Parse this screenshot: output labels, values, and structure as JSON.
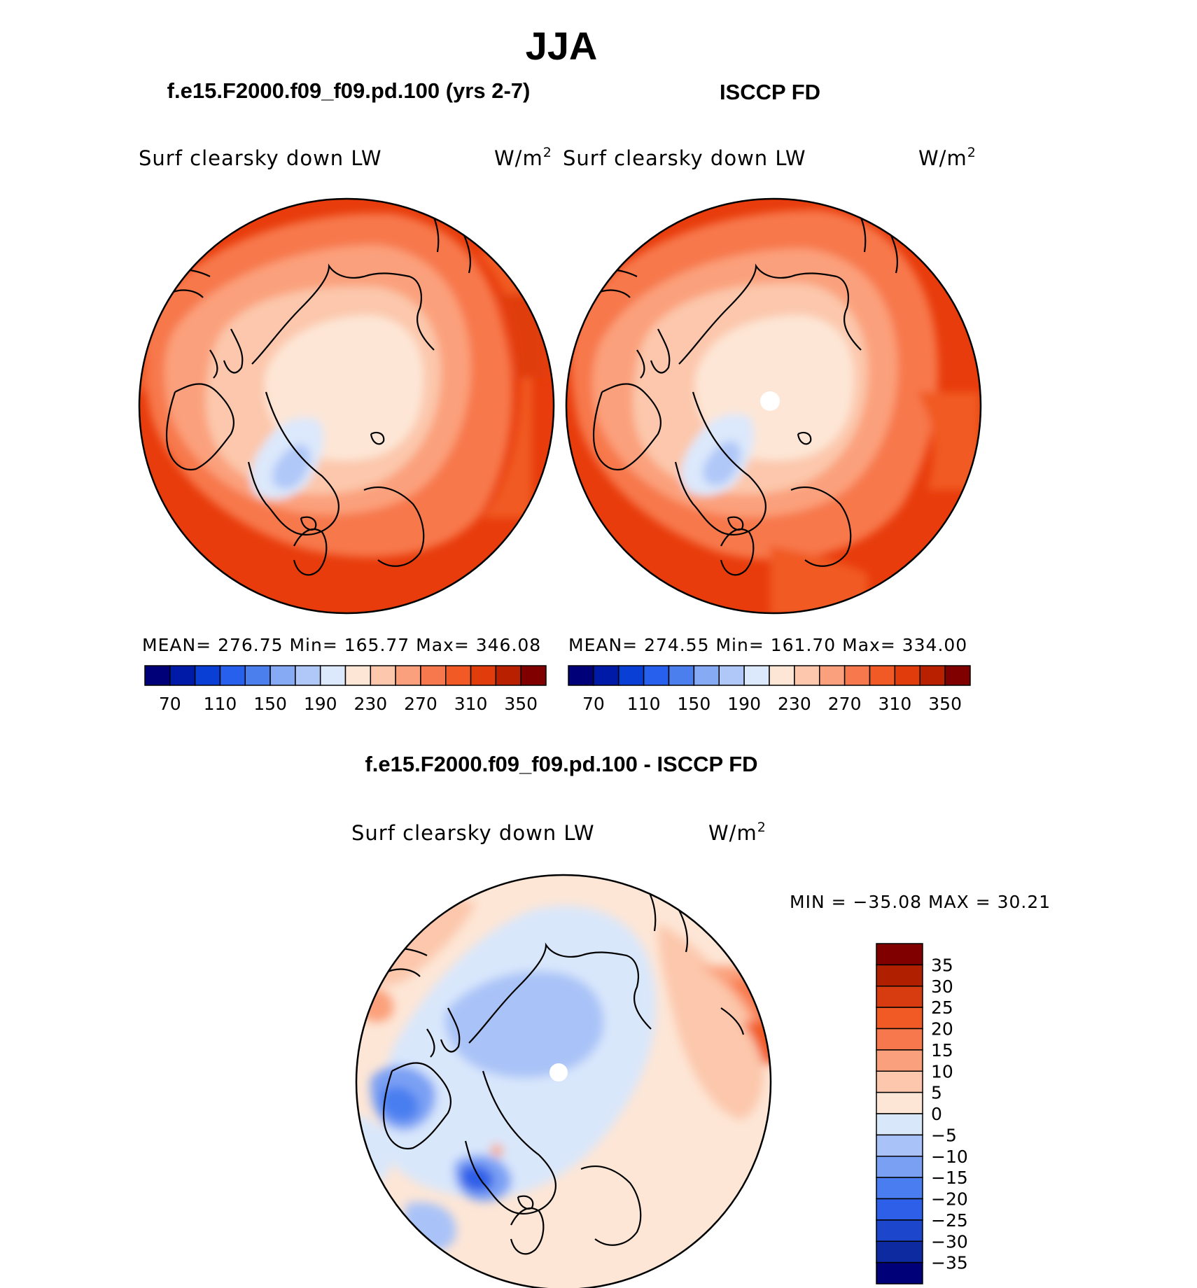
{
  "season": "JJA",
  "colors": {
    "div": [
      "#000078",
      "#001aa8",
      "#0a3fd6",
      "#2860ee",
      "#4b7fee",
      "#86aaf4",
      "#b0c8f8",
      "#dce8fb",
      "#fde6d6",
      "#fcc7ac",
      "#fba07c",
      "#f7784c",
      "#f15a24",
      "#e03c0c",
      "#b82000",
      "#800000"
    ],
    "diff": [
      "#000078",
      "#0e2aa0",
      "#1c46cc",
      "#2d5fe8",
      "#4a7ef0",
      "#7aa0f4",
      "#a9c3f8",
      "#d9e7fb",
      "#fde6d6",
      "#fcc7ac",
      "#fba07c",
      "#f7784c",
      "#f15a24",
      "#d73c10",
      "#b02000",
      "#800000"
    ]
  },
  "panels": [
    {
      "title": "f.e15.F2000.f09_f09.pd.100 (yrs 2-7)",
      "var_label": "Surf clearsky down LW",
      "units": "W/m",
      "units_sup": "2",
      "stats": "MEAN= 276.75   Min= 165.77   Max= 346.08"
    },
    {
      "title": "ISCCP FD",
      "var_label": "Surf clearsky down LW",
      "units": "W/m",
      "units_sup": "2",
      "stats": "MEAN= 274.55   Min= 161.70   Max= 334.00"
    }
  ],
  "diff_panel": {
    "title": "f.e15.F2000.f09_f09.pd.100 - ISCCP FD",
    "var_label": "Surf clearsky down LW",
    "units": "W/m",
    "units_sup": "2",
    "minmax": "MIN = −35.08 MAX =   30.21"
  },
  "chart_data": [
    {
      "type": "heatmap",
      "title": "f.e15.F2000.f09_f09.pd.100 (yrs 2-7)",
      "projection": "north polar stereographic",
      "variable": "Surf clearsky down LW",
      "units": "W/m2",
      "stats": {
        "mean": 276.75,
        "min": 165.77,
        "max": 346.08
      },
      "contour_levels": [
        70,
        90,
        110,
        130,
        150,
        170,
        190,
        210,
        230,
        250,
        270,
        290,
        310,
        330,
        350
      ],
      "colorbar_ticks": [
        "70",
        "110",
        "150",
        "190",
        "230",
        "270",
        "310",
        "350"
      ]
    },
    {
      "type": "heatmap",
      "title": "ISCCP FD",
      "projection": "north polar stereographic",
      "variable": "Surf clearsky down LW",
      "units": "W/m2",
      "stats": {
        "mean": 274.55,
        "min": 161.7,
        "max": 334.0
      },
      "contour_levels": [
        70,
        90,
        110,
        130,
        150,
        170,
        190,
        210,
        230,
        250,
        270,
        290,
        310,
        330,
        350
      ],
      "colorbar_ticks": [
        "70",
        "110",
        "150",
        "190",
        "230",
        "270",
        "310",
        "350"
      ]
    },
    {
      "type": "heatmap",
      "title": "f.e15.F2000.f09_f09.pd.100 - ISCCP FD",
      "projection": "north polar stereographic",
      "variable": "Surf clearsky down LW",
      "units": "W/m2",
      "stats": {
        "min": -35.08,
        "max": 30.21
      },
      "contour_levels": [
        -35,
        -30,
        -25,
        -20,
        -15,
        -10,
        -5,
        0,
        5,
        10,
        15,
        20,
        25,
        30,
        35
      ],
      "colorbar_ticks": [
        "35",
        "30",
        "25",
        "20",
        "15",
        "10",
        "5",
        "0",
        "−5",
        "−10",
        "−15",
        "−20",
        "−25",
        "−30",
        "−35"
      ]
    }
  ]
}
